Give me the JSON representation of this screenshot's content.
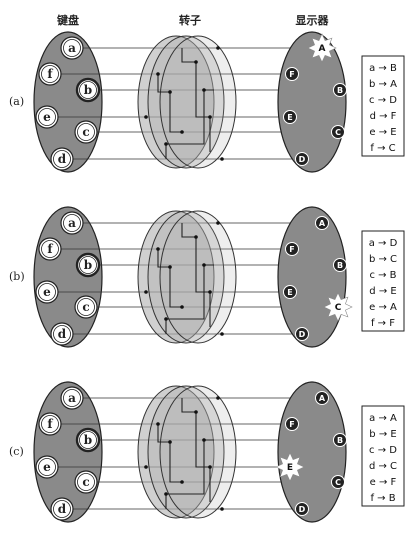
{
  "headers": {
    "keyboard": "键盘",
    "rotor": "转子",
    "display": "显示器"
  },
  "panels": [
    {
      "label": "(a)",
      "keys": [
        "a",
        "f",
        "b",
        "e",
        "c",
        "d"
      ],
      "lamps": [
        "A",
        "F",
        "B",
        "E",
        "C",
        "D"
      ],
      "lit_lamp": "A",
      "pressed_key": "b",
      "mapping": [
        "a → B",
        "b → A",
        "c → D",
        "d → F",
        "e → E",
        "f → C"
      ]
    },
    {
      "label": "(b)",
      "keys": [
        "a",
        "f",
        "b",
        "e",
        "c",
        "d"
      ],
      "lamps": [
        "A",
        "F",
        "B",
        "E",
        "C",
        "D"
      ],
      "lit_lamp": "C",
      "pressed_key": "b",
      "mapping": [
        "a → D",
        "b → C",
        "c → B",
        "d → E",
        "e → A",
        "f → F"
      ]
    },
    {
      "label": "(c)",
      "keys": [
        "a",
        "f",
        "b",
        "e",
        "c",
        "d"
      ],
      "lamps": [
        "A",
        "F",
        "B",
        "E",
        "C",
        "D"
      ],
      "lit_lamp": "E",
      "pressed_key": "b",
      "mapping": [
        "a → A",
        "b → E",
        "c → D",
        "d → C",
        "e → F",
        "f → B"
      ]
    }
  ]
}
